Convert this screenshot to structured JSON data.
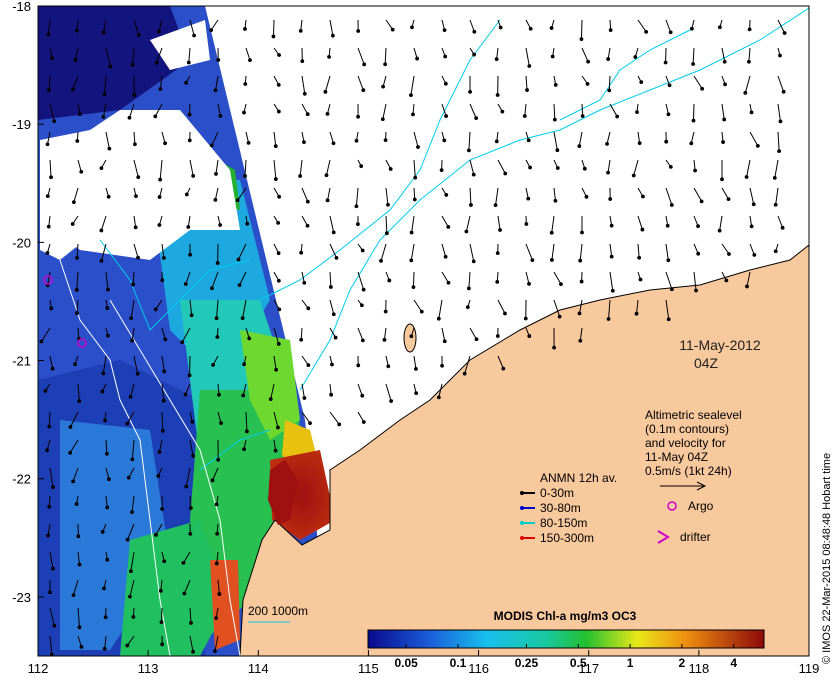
{
  "map": {
    "lon_ticks": [
      "112",
      "113",
      "114",
      "115",
      "116",
      "117",
      "118",
      "119"
    ],
    "lat_ticks": [
      "-18",
      "-19",
      "-20",
      "-21",
      "-22",
      "-23"
    ],
    "lon_range": [
      112,
      119
    ],
    "lat_range": [
      -23.5,
      -18
    ],
    "date_line1": "11-May-2012",
    "date_line2": "04Z",
    "altimetric_lines": [
      "Altimetric sealevel",
      "(0.1m contours)",
      "and velocity for",
      "11-May 04Z",
      "0.5m/s (1kt 24h)"
    ],
    "anmn_title": "ANMN 12h av.",
    "anmn_items": [
      {
        "label": "0-30m",
        "color": "#000000"
      },
      {
        "label": "30-80m",
        "color": "#0000cc"
      },
      {
        "label": "80-150m",
        "color": "#00cccc"
      },
      {
        "label": "150-300m",
        "color": "#dd0000"
      }
    ],
    "argo_label": "Argo",
    "drifter_label": "drifter",
    "argo_color": "#cc00cc",
    "isobath_label": "200 1000m",
    "colorbar_title": "MODIS Chl-a mg/m3 OC3",
    "colorbar_ticks": [
      "0.05",
      "0.1",
      "0.25",
      "0.5",
      "1",
      "2",
      "4"
    ],
    "credit": "© IMOS 22-Mar-2015 08:48:48 Hobart time",
    "land_color": "#f9c99e",
    "contour_color": "#00ccee"
  }
}
